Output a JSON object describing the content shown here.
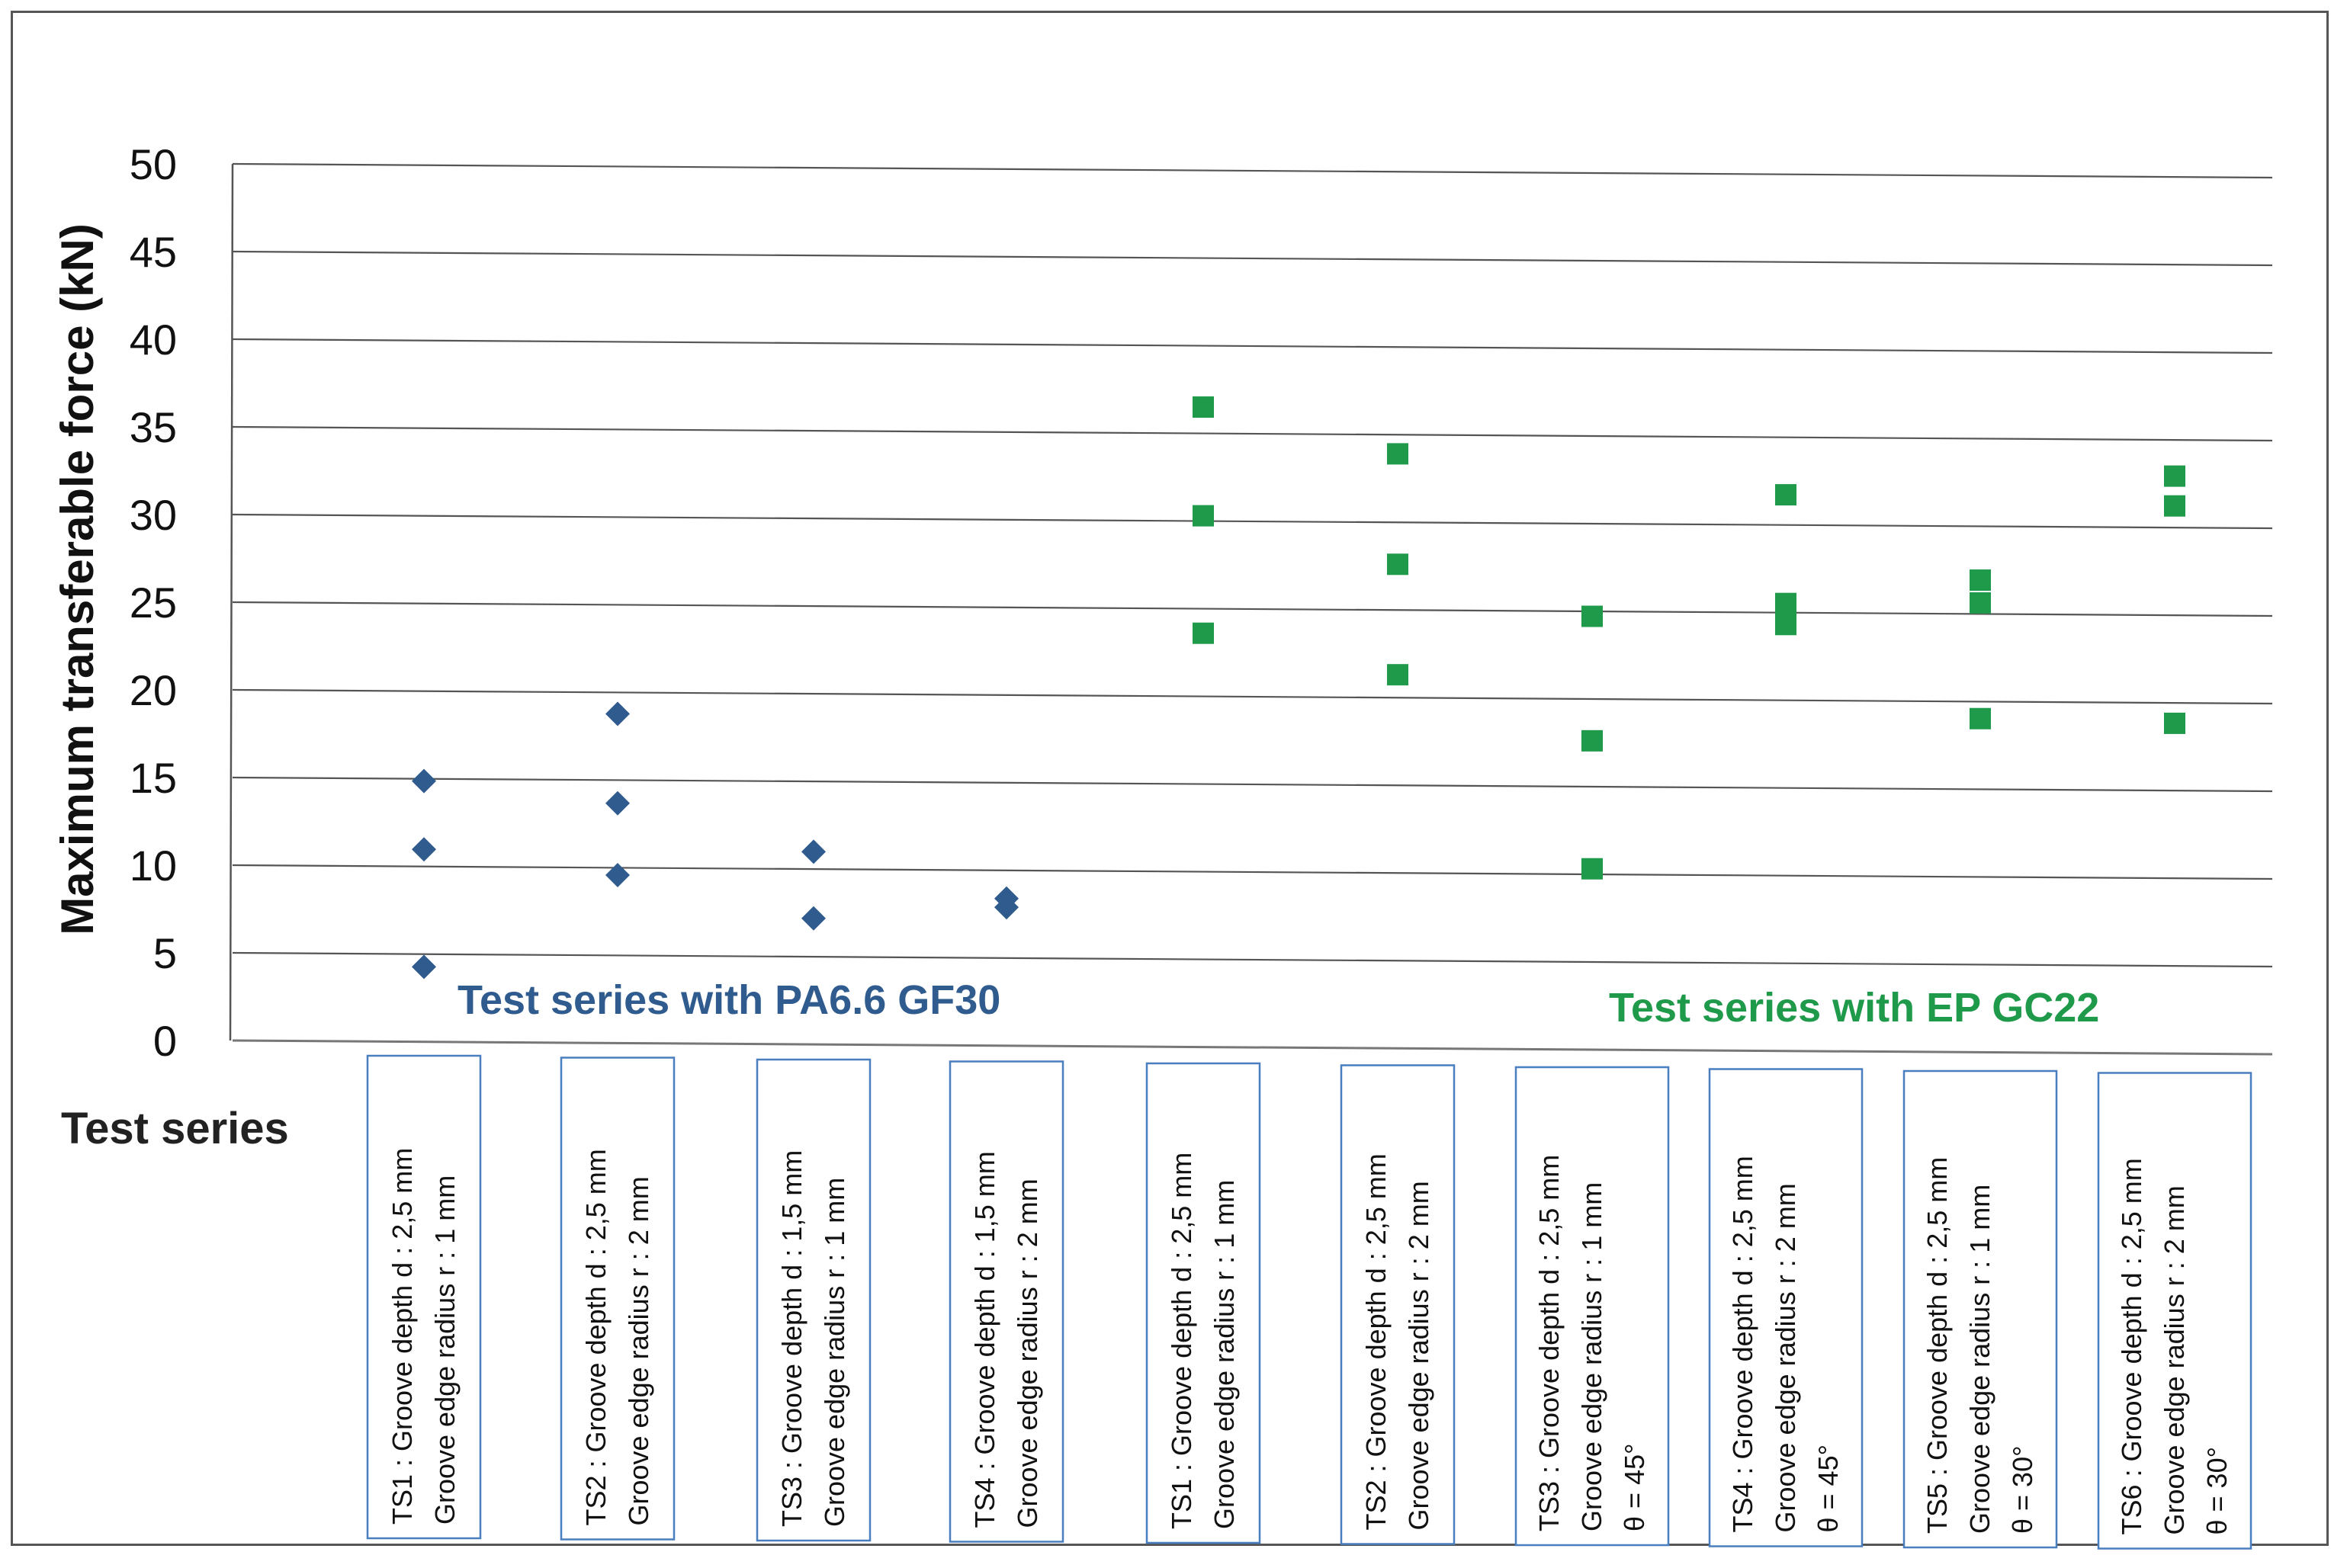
{
  "chart_data": {
    "type": "scatter",
    "ylabel": "Maximum transferable force (kN)",
    "xlabel": "Test series",
    "ylim": [
      0,
      50
    ],
    "yticks": [
      0,
      5,
      10,
      15,
      20,
      25,
      30,
      35,
      40,
      45,
      50
    ],
    "grid": true,
    "categories": [
      [
        "TS1 : Groove depth d : 2,5 mm",
        "Groove edge radius r : 1 mm"
      ],
      [
        "TS2 : Groove depth d : 2,5 mm",
        "Groove edge radius r : 2 mm"
      ],
      [
        "TS3 : Groove depth d : 1,5 mm",
        "Groove edge radius r : 1 mm"
      ],
      [
        "TS4 : Groove depth d : 1,5 mm",
        "Groove edge radius r : 2 mm"
      ],
      [
        "TS1 : Groove depth d : 2,5 mm",
        "Groove edge radius r : 1 mm"
      ],
      [
        "TS2 : Groove depth d : 2,5 mm",
        "Groove edge radius r : 2 mm"
      ],
      [
        "TS3 : Groove depth d : 2,5 mm",
        "Groove edge radius r : 1 mm",
        "θ = 45°"
      ],
      [
        "TS4 : Groove depth d : 2,5 mm",
        "Groove edge radius r : 2 mm",
        "θ = 45°"
      ],
      [
        "TS5 : Groove depth d : 2,5 mm",
        "Groove edge radius r : 1 mm",
        "θ = 30°"
      ],
      [
        "TS6 : Groove depth d : 2,5 mm",
        "Groove edge radius r : 2 mm",
        "θ = 30°"
      ]
    ],
    "series": [
      {
        "name": "Test series with PA6.6 GF30",
        "marker": "diamond",
        "color": "#2f5b8e",
        "points": [
          {
            "cat": 0,
            "values": [
              14.8,
              10.9,
              4.2
            ]
          },
          {
            "cat": 1,
            "values": [
              18.7,
              13.6,
              9.5
            ]
          },
          {
            "cat": 2,
            "values": [
              10.9,
              7.1
            ]
          },
          {
            "cat": 3,
            "values": [
              8.3,
              7.8
            ]
          }
        ]
      },
      {
        "name": "Test series with EP GC22",
        "marker": "square",
        "color": "#1f9a4a",
        "points": [
          {
            "cat": 4,
            "values": [
              36.4,
              30.2,
              23.5
            ]
          },
          {
            "cat": 5,
            "values": [
              33.8,
              27.5,
              21.2
            ]
          },
          {
            "cat": 6,
            "values": [
              24.6,
              17.5,
              10.2
            ]
          },
          {
            "cat": 7,
            "values": [
              31.6,
              25.4,
              24.2
            ]
          },
          {
            "cat": 8,
            "values": [
              26.8,
              25.5,
              18.9
            ]
          },
          {
            "cat": 9,
            "values": [
              32.8,
              31.1,
              18.7
            ]
          }
        ]
      }
    ]
  }
}
